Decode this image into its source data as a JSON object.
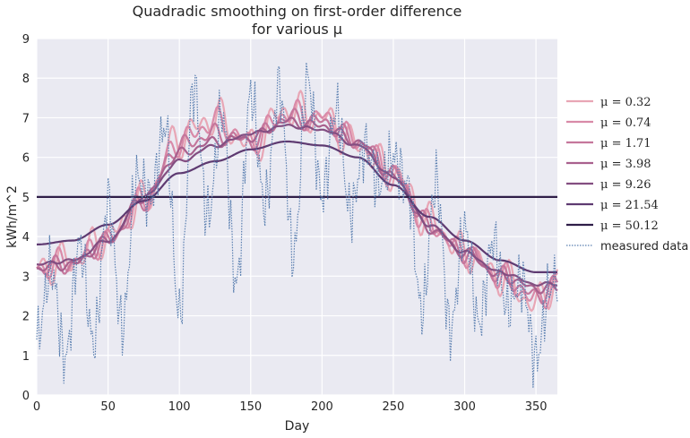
{
  "chart_data": {
    "type": "line",
    "title": "Quadradic smoothing on first-order difference",
    "subtitle": "for various μ",
    "xlabel": "Day",
    "ylabel": "kWh/m^2",
    "xlim": [
      0,
      365
    ],
    "ylim": [
      0,
      9
    ],
    "xticks": [
      0,
      50,
      100,
      150,
      200,
      250,
      300,
      350
    ],
    "yticks": [
      0,
      1,
      2,
      3,
      4,
      5,
      6,
      7,
      8,
      9
    ],
    "grid": true,
    "background_color": "#eaeaf2",
    "legend_position": "right, outside plot",
    "series": [
      {
        "name": "μ = 0.32",
        "color": "#e8a6b5",
        "style": "solid",
        "wiggle": 0.55,
        "x": [
          0,
          25,
          50,
          75,
          100,
          125,
          150,
          175,
          200,
          225,
          250,
          275,
          300,
          325,
          350,
          365
        ],
        "values": [
          3.2,
          3.4,
          4.0,
          4.9,
          6.5,
          7.0,
          6.3,
          7.2,
          7.0,
          6.3,
          5.6,
          4.4,
          3.6,
          3.0,
          2.3,
          2.9
        ]
      },
      {
        "name": "μ = 0.74",
        "color": "#d98aa8",
        "style": "solid",
        "wiggle": 0.4,
        "x": [
          0,
          25,
          50,
          75,
          100,
          125,
          150,
          175,
          200,
          225,
          250,
          275,
          300,
          325,
          350,
          365
        ],
        "values": [
          3.2,
          3.4,
          3.9,
          4.9,
          6.4,
          6.9,
          6.4,
          7.1,
          7.0,
          6.4,
          5.6,
          4.3,
          3.6,
          3.0,
          2.4,
          2.8
        ]
      },
      {
        "name": "μ = 1.71",
        "color": "#c5779c",
        "style": "solid",
        "wiggle": 0.28,
        "x": [
          0,
          25,
          50,
          75,
          100,
          125,
          150,
          175,
          200,
          225,
          250,
          275,
          300,
          325,
          350,
          365
        ],
        "values": [
          3.2,
          3.3,
          3.9,
          4.9,
          6.3,
          6.6,
          6.4,
          7.0,
          6.9,
          6.4,
          5.6,
          4.3,
          3.6,
          3.0,
          2.5,
          2.8
        ]
      },
      {
        "name": "μ = 3.98",
        "color": "#a9618e",
        "style": "solid",
        "wiggle": 0.15,
        "x": [
          0,
          25,
          50,
          75,
          100,
          125,
          150,
          175,
          200,
          225,
          250,
          275,
          300,
          325,
          350,
          365
        ],
        "values": [
          3.2,
          3.3,
          3.9,
          5.0,
          6.1,
          6.4,
          6.5,
          6.9,
          6.8,
          6.4,
          5.5,
          4.2,
          3.6,
          3.0,
          2.7,
          2.7
        ]
      },
      {
        "name": "μ = 9.26",
        "color": "#834e81",
        "style": "solid",
        "wiggle": 0.05,
        "x": [
          0,
          25,
          50,
          75,
          100,
          125,
          150,
          175,
          200,
          225,
          250,
          275,
          300,
          325,
          350,
          365
        ],
        "values": [
          3.3,
          3.4,
          3.9,
          5.0,
          5.9,
          6.3,
          6.6,
          6.8,
          6.7,
          6.3,
          5.5,
          4.3,
          3.6,
          3.1,
          2.8,
          2.8
        ]
      },
      {
        "name": "μ = 21.54",
        "color": "#5e3a71",
        "style": "solid",
        "wiggle": 0.0,
        "x": [
          0,
          25,
          50,
          75,
          100,
          125,
          150,
          175,
          200,
          225,
          250,
          275,
          300,
          325,
          350,
          365
        ],
        "values": [
          3.8,
          3.9,
          4.3,
          4.9,
          5.6,
          5.9,
          6.2,
          6.4,
          6.3,
          6.0,
          5.3,
          4.5,
          3.9,
          3.4,
          3.1,
          3.1
        ]
      },
      {
        "name": "μ = 50.12",
        "color": "#2f1e48",
        "style": "solid",
        "wiggle": 0.0,
        "x": [
          0,
          365
        ],
        "values": [
          5.0,
          5.0
        ]
      },
      {
        "name": "measured data",
        "color": "#5a7fb0",
        "style": "dotted",
        "x": [
          0,
          10,
          20,
          30,
          40,
          50,
          60,
          70,
          80,
          90,
          100,
          110,
          120,
          130,
          140,
          150,
          160,
          170,
          180,
          190,
          200,
          210,
          220,
          230,
          240,
          250,
          260,
          270,
          280,
          290,
          300,
          310,
          320,
          330,
          340,
          350,
          360,
          365
        ],
        "values": [
          1.4,
          3.2,
          0.9,
          3.8,
          1.3,
          4.9,
          1.7,
          5.5,
          5.0,
          6.8,
          2.0,
          7.8,
          4.5,
          7.1,
          2.8,
          7.6,
          4.8,
          7.8,
          3.5,
          8.0,
          5.0,
          7.2,
          4.6,
          6.3,
          5.3,
          6.0,
          5.3,
          2.1,
          5.4,
          1.6,
          4.2,
          1.8,
          3.9,
          2.2,
          2.9,
          0.9,
          2.7,
          3.0
        ]
      }
    ]
  }
}
